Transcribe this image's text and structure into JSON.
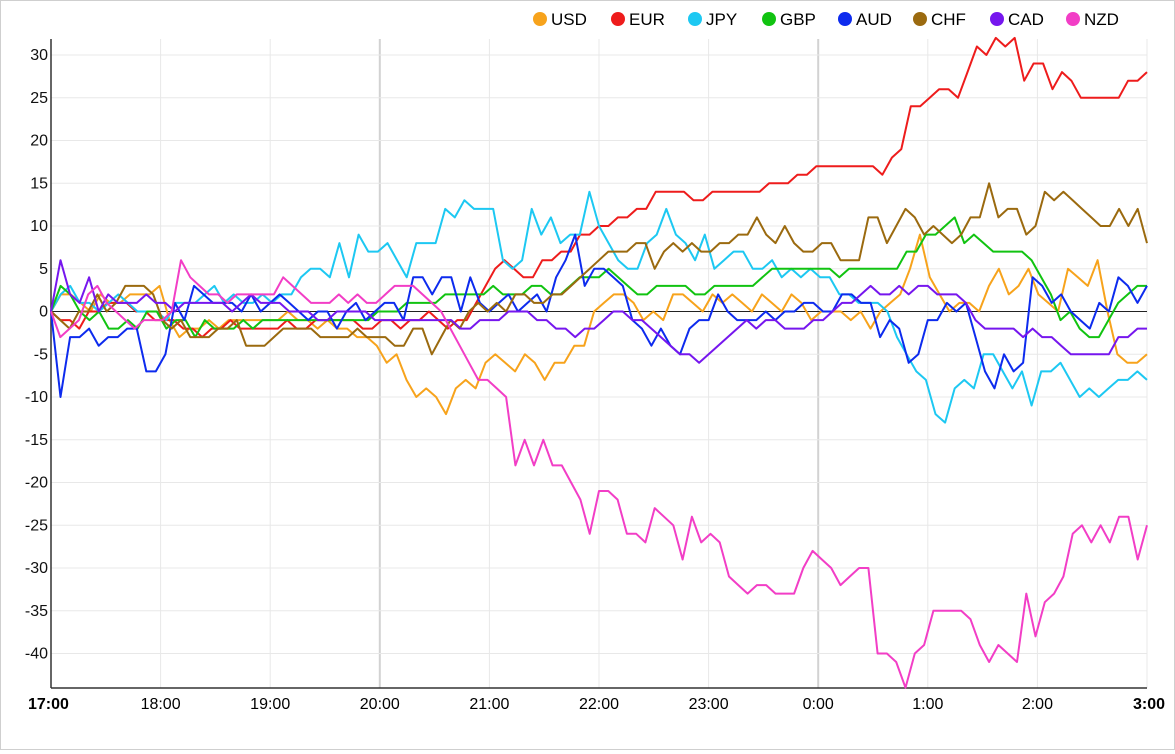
{
  "chart_data": {
    "type": "line",
    "x_ticks": [
      "17:00",
      "18:00",
      "19:00",
      "20:00",
      "21:00",
      "22:00",
      "23:00",
      "0:00",
      "1:00",
      "2:00",
      "3:00"
    ],
    "bold_ticks": [
      "17:00",
      "3:00"
    ],
    "y_ticks": [
      30,
      25,
      20,
      15,
      10,
      5,
      0,
      -5,
      -10,
      -15,
      -20,
      -25,
      -30,
      -35,
      -40
    ],
    "ylim": [
      -44,
      32
    ],
    "grid": true,
    "legend": "top-right",
    "series": [
      {
        "name": "USD",
        "color": "#f7a31c",
        "values": [
          0,
          2,
          2,
          1,
          0,
          2,
          1,
          1,
          2,
          2,
          2,
          3,
          -1,
          -3,
          -2,
          -2,
          -1,
          -2,
          -1,
          -1,
          -1,
          -1,
          -1,
          -1,
          0,
          -1,
          -1,
          -2,
          -1,
          -2,
          -2,
          -3,
          -3,
          -4,
          -6,
          -5,
          -8,
          -10,
          -9,
          -10,
          -12,
          -9,
          -8,
          -9,
          -6,
          -5,
          -6,
          -7,
          -5,
          -6,
          -8,
          -6,
          -6,
          -4,
          -4,
          0,
          1,
          2,
          2,
          1,
          -1,
          0,
          -1,
          2,
          2,
          1,
          0,
          2,
          1,
          2,
          1,
          0,
          2,
          1,
          0,
          2,
          1,
          -1,
          0,
          0,
          0,
          -1,
          0,
          -2,
          0,
          1,
          2,
          5,
          9,
          4,
          2,
          0,
          1,
          1,
          0,
          3,
          5,
          2,
          3,
          5,
          2,
          1,
          0,
          5,
          4,
          3,
          6,
          0,
          -5,
          -6,
          -6,
          -5
        ]
      },
      {
        "name": "EUR",
        "color": "#ee1c1c",
        "values": [
          0,
          -1,
          -1,
          -2,
          0,
          0,
          1,
          1,
          1,
          0,
          0,
          -1,
          -1,
          -1,
          -2,
          -2,
          -3,
          -2,
          -2,
          -1,
          -2,
          -2,
          -2,
          -2,
          -2,
          -1,
          -2,
          -2,
          -1,
          -1,
          -1,
          -1,
          -1,
          -2,
          -2,
          -1,
          -1,
          -2,
          -1,
          -1,
          0,
          -1,
          -2,
          -1,
          -1,
          1,
          3,
          5,
          6,
          5,
          4,
          4,
          6,
          6,
          7,
          7,
          9,
          9,
          10,
          10,
          11,
          11,
          12,
          12,
          14,
          14,
          14,
          14,
          13,
          13,
          14,
          14,
          14,
          14,
          14,
          14,
          15,
          15,
          15,
          16,
          16,
          17,
          17,
          17,
          17,
          17,
          17,
          17,
          16,
          18,
          19,
          24,
          24,
          25,
          26,
          26,
          25,
          28,
          31,
          30,
          32,
          31,
          32,
          27,
          29,
          29,
          26,
          28,
          27,
          25,
          25,
          25,
          25,
          25,
          27,
          27,
          28
        ]
      },
      {
        "name": "JPY",
        "color": "#1dc8f2",
        "values": [
          0,
          2,
          3,
          1,
          1,
          0,
          1,
          2,
          1,
          0,
          0,
          0,
          -1,
          1,
          1,
          1,
          2,
          3,
          1,
          2,
          1,
          1,
          2,
          1,
          2,
          2,
          4,
          5,
          5,
          4,
          8,
          4,
          9,
          7,
          7,
          8,
          6,
          4,
          8,
          8,
          8,
          12,
          11,
          13,
          12,
          12,
          12,
          6,
          5,
          6,
          12,
          9,
          11,
          8,
          9,
          9,
          14,
          10,
          8,
          6,
          5,
          5,
          8,
          9,
          12,
          9,
          8,
          6,
          9,
          5,
          6,
          7,
          7,
          5,
          5,
          6,
          4,
          5,
          4,
          5,
          4,
          4,
          2,
          2,
          1,
          1,
          1,
          0,
          -3,
          -5,
          -7,
          -8,
          -12,
          -13,
          -9,
          -8,
          -9,
          -5,
          -5,
          -7,
          -9,
          -7,
          -11,
          -7,
          -7,
          -6,
          -8,
          -10,
          -9,
          -10,
          -9,
          -8,
          -8,
          -7,
          -8
        ]
      },
      {
        "name": "GBP",
        "color": "#11c311",
        "values": [
          0,
          3,
          2,
          0,
          -1,
          0,
          -2,
          -2,
          -1,
          -2,
          0,
          0,
          -2,
          -1,
          -1,
          -3,
          -1,
          -2,
          -2,
          -2,
          -1,
          -2,
          -1,
          -1,
          -1,
          -1,
          -1,
          -1,
          -1,
          -1,
          -1,
          -1,
          -1,
          -1,
          0,
          0,
          0,
          1,
          1,
          1,
          1,
          2,
          2,
          2,
          2,
          2,
          3,
          2,
          2,
          2,
          3,
          3,
          2,
          2,
          3,
          4,
          4,
          4,
          5,
          4,
          3,
          2,
          2,
          3,
          3,
          3,
          3,
          2,
          2,
          3,
          3,
          3,
          3,
          3,
          4,
          5,
          5,
          5,
          5,
          5,
          5,
          5,
          4,
          5,
          5,
          5,
          5,
          5,
          5,
          7,
          7,
          9,
          9,
          10,
          11,
          8,
          9,
          8,
          7,
          7,
          7,
          7,
          6,
          4,
          2,
          -1,
          0,
          -2,
          -3,
          -3,
          -1,
          1,
          2,
          3,
          3
        ]
      },
      {
        "name": "AUD",
        "color": "#0d2bee",
        "values": [
          0,
          -10,
          -3,
          -3,
          -2,
          -4,
          -3,
          -3,
          -2,
          -2,
          -7,
          -7,
          -5,
          1,
          -1,
          3,
          2,
          1,
          1,
          1,
          0,
          2,
          0,
          1,
          2,
          1,
          0,
          -1,
          0,
          0,
          -2,
          0,
          1,
          -1,
          0,
          1,
          1,
          -1,
          4,
          4,
          2,
          4,
          4,
          0,
          4,
          1,
          0,
          1,
          2,
          0,
          1,
          2,
          0,
          4,
          6,
          9,
          3,
          5,
          5,
          4,
          3,
          -1,
          -2,
          -4,
          -2,
          -4,
          -5,
          -2,
          -1,
          -1,
          2,
          0,
          -1,
          -1,
          -1,
          0,
          -1,
          0,
          0,
          1,
          1,
          0,
          0,
          2,
          2,
          1,
          1,
          -3,
          -1,
          -2,
          -6,
          -5,
          -1,
          -1,
          1,
          0,
          1,
          -3,
          -7,
          -9,
          -5,
          -7,
          -6,
          4,
          3,
          1,
          2,
          0,
          -1,
          -2,
          1,
          0,
          4,
          3,
          1,
          3
        ]
      },
      {
        "name": "CHF",
        "color": "#9b6a0f",
        "values": [
          0,
          -1,
          -2,
          0,
          0,
          2,
          0,
          1,
          3,
          3,
          3,
          2,
          -1,
          -2,
          -1,
          -3,
          -3,
          -3,
          -2,
          -2,
          -1,
          -4,
          -4,
          -4,
          -3,
          -2,
          -2,
          -2,
          -2,
          -3,
          -3,
          -3,
          -3,
          -2,
          -3,
          -3,
          -3,
          -4,
          -4,
          -2,
          -2,
          -5,
          -3,
          -1,
          -2,
          0,
          1,
          0,
          1,
          0,
          2,
          2,
          1,
          1,
          2,
          2,
          3,
          4,
          5,
          6,
          7,
          7,
          7,
          8,
          8,
          5,
          7,
          8,
          7,
          8,
          7,
          7,
          8,
          8,
          9,
          9,
          11,
          9,
          8,
          10,
          8,
          7,
          7,
          8,
          8,
          6,
          6,
          6,
          11,
          11,
          8,
          10,
          12,
          11,
          9,
          10,
          9,
          8,
          9,
          11,
          11,
          15,
          11,
          12,
          12,
          9,
          10,
          14,
          13,
          14,
          13,
          12,
          11,
          10,
          10,
          12,
          10,
          12,
          8
        ]
      },
      {
        "name": "CAD",
        "color": "#7616ee",
        "values": [
          0,
          6,
          2,
          1,
          4,
          0,
          2,
          1,
          1,
          1,
          2,
          1,
          1,
          0,
          1,
          1,
          1,
          1,
          1,
          0,
          1,
          2,
          1,
          1,
          1,
          0,
          0,
          0,
          -1,
          -1,
          0,
          0,
          0,
          0,
          -1,
          -1,
          -1,
          -1,
          -1,
          -1,
          -1,
          -1,
          -1,
          -2,
          -2,
          -1,
          -1,
          -1,
          0,
          0,
          0,
          -1,
          -1,
          -2,
          -2,
          -3,
          -2,
          -2,
          -1,
          0,
          0,
          -1,
          -1,
          -2,
          -3,
          -4,
          -5,
          -5,
          -6,
          -5,
          -4,
          -3,
          -2,
          -1,
          -2,
          -1,
          -1,
          -2,
          -2,
          -2,
          -1,
          -1,
          0,
          1,
          1,
          2,
          3,
          2,
          2,
          3,
          2,
          3,
          3,
          2,
          2,
          2,
          1,
          -1,
          -2,
          -2,
          -2,
          -2,
          -3,
          -2,
          -3,
          -3,
          -4,
          -5,
          -5,
          -5,
          -5,
          -5,
          -3,
          -3,
          -2,
          -2
        ]
      },
      {
        "name": "NZD",
        "color": "#f23ec6",
        "values": [
          0,
          -3,
          -2,
          -1,
          2,
          3,
          1,
          0,
          -1,
          -2,
          -1,
          -1,
          -1,
          0,
          6,
          4,
          3,
          2,
          2,
          1,
          2,
          2,
          2,
          2,
          2,
          4,
          3,
          2,
          1,
          1,
          1,
          2,
          1,
          2,
          1,
          1,
          2,
          3,
          3,
          3,
          2,
          1,
          0,
          -2,
          -4,
          -6,
          -8,
          -8,
          -9,
          -10,
          -18,
          -15,
          -18,
          -15,
          -18,
          -18,
          -20,
          -22,
          -26,
          -21,
          -21,
          -22,
          -26,
          -26,
          -27,
          -23,
          -24,
          -25,
          -29,
          -24,
          -27,
          -26,
          -27,
          -31,
          -32,
          -33,
          -32,
          -32,
          -33,
          -33,
          -33,
          -30,
          -28,
          -29,
          -30,
          -32,
          -31,
          -30,
          -30,
          -40,
          -40,
          -41,
          -44,
          -40,
          -39,
          -35,
          -35,
          -35,
          -35,
          -36,
          -39,
          -41,
          -39,
          -40,
          -41,
          -33,
          -38,
          -34,
          -33,
          -31,
          -26,
          -25,
          -27,
          -25,
          -27,
          -24,
          -24,
          -29,
          -25
        ]
      }
    ]
  }
}
